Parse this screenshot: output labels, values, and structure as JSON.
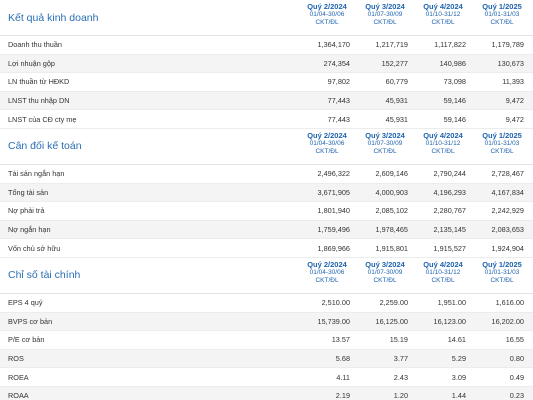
{
  "sections": [
    {
      "title": "Kết quả kinh doanh",
      "periods": [
        {
          "name": "Quý 2/2024",
          "range": "01/04-30/06",
          "unit": "CKT/ĐL"
        },
        {
          "name": "Quý 3/2024",
          "range": "01/07-30/09",
          "unit": "CKT/ĐL"
        },
        {
          "name": "Quý 4/2024",
          "range": "01/10-31/12",
          "unit": "CKT/ĐL"
        },
        {
          "name": "Quý 1/2025",
          "range": "01/01-31/03",
          "unit": "CKT/ĐL"
        }
      ],
      "rows": [
        {
          "label": "Doanh thu thuần",
          "values": [
            "1,364,170",
            "1,217,719",
            "1,117,822",
            "1,179,789"
          ]
        },
        {
          "label": "Lợi nhuận gộp",
          "values": [
            "274,354",
            "152,277",
            "140,986",
            "130,673"
          ]
        },
        {
          "label": "LN thuần từ HĐKD",
          "values": [
            "97,802",
            "60,779",
            "73,098",
            "11,393"
          ]
        },
        {
          "label": "LNST thu nhập DN",
          "values": [
            "77,443",
            "45,931",
            "59,146",
            "9,472"
          ]
        },
        {
          "label": "LNST của CĐ cty mẹ",
          "values": [
            "77,443",
            "45,931",
            "59,146",
            "9,472"
          ]
        }
      ]
    },
    {
      "title": "Cân đối kế toán",
      "periods": [
        {
          "name": "Quý 2/2024",
          "range": "01/04-30/06",
          "unit": "CKT/ĐL"
        },
        {
          "name": "Quý 3/2024",
          "range": "01/07-30/09",
          "unit": "CKT/ĐL"
        },
        {
          "name": "Quý 4/2024",
          "range": "01/10-31/12",
          "unit": "CKT/ĐL"
        },
        {
          "name": "Quý 1/2025",
          "range": "01/01-31/03",
          "unit": "CKT/ĐL"
        }
      ],
      "rows": [
        {
          "label": "Tài sản ngắn hạn",
          "values": [
            "2,496,322",
            "2,609,146",
            "2,790,244",
            "2,728,467"
          ]
        },
        {
          "label": "Tổng tài sản",
          "values": [
            "3,671,905",
            "4,000,903",
            "4,196,293",
            "4,167,834"
          ]
        },
        {
          "label": "Nợ phải trả",
          "values": [
            "1,801,940",
            "2,085,102",
            "2,280,767",
            "2,242,929"
          ]
        },
        {
          "label": "Nợ ngắn hạn",
          "values": [
            "1,759,496",
            "1,978,465",
            "2,135,145",
            "2,083,653"
          ]
        },
        {
          "label": "Vốn chủ sở hữu",
          "values": [
            "1,869,966",
            "1,915,801",
            "1,915,527",
            "1,924,904"
          ]
        }
      ]
    },
    {
      "title": "Chỉ số tài chính",
      "periods": [
        {
          "name": "Quý 2/2024",
          "range": "01/04-30/06",
          "unit": "CKT/ĐL"
        },
        {
          "name": "Quý 3/2024",
          "range": "01/07-30/09",
          "unit": "CKT/ĐL"
        },
        {
          "name": "Quý 4/2024",
          "range": "01/10-31/12",
          "unit": "CKT/ĐL"
        },
        {
          "name": "Quý 1/2025",
          "range": "01/01-31/03",
          "unit": "CKT/ĐL"
        }
      ],
      "rows": [
        {
          "label": "EPS 4 quý",
          "values": [
            "2,510.00",
            "2,259.00",
            "1,951.00",
            "1,616.00"
          ]
        },
        {
          "label": "BVPS cơ bản",
          "values": [
            "15,739.00",
            "16,125.00",
            "16,123.00",
            "16,202.00"
          ]
        },
        {
          "label": "P/E cơ bản",
          "values": [
            "13.57",
            "15.19",
            "14.61",
            "16.55"
          ]
        },
        {
          "label": "ROS",
          "values": [
            "5.68",
            "3.77",
            "5.29",
            "0.80"
          ]
        },
        {
          "label": "ROEA",
          "values": [
            "4.11",
            "2.43",
            "3.09",
            "0.49"
          ]
        },
        {
          "label": "ROAA",
          "values": [
            "2.19",
            "1.20",
            "1.44",
            "0.23"
          ]
        }
      ]
    }
  ]
}
